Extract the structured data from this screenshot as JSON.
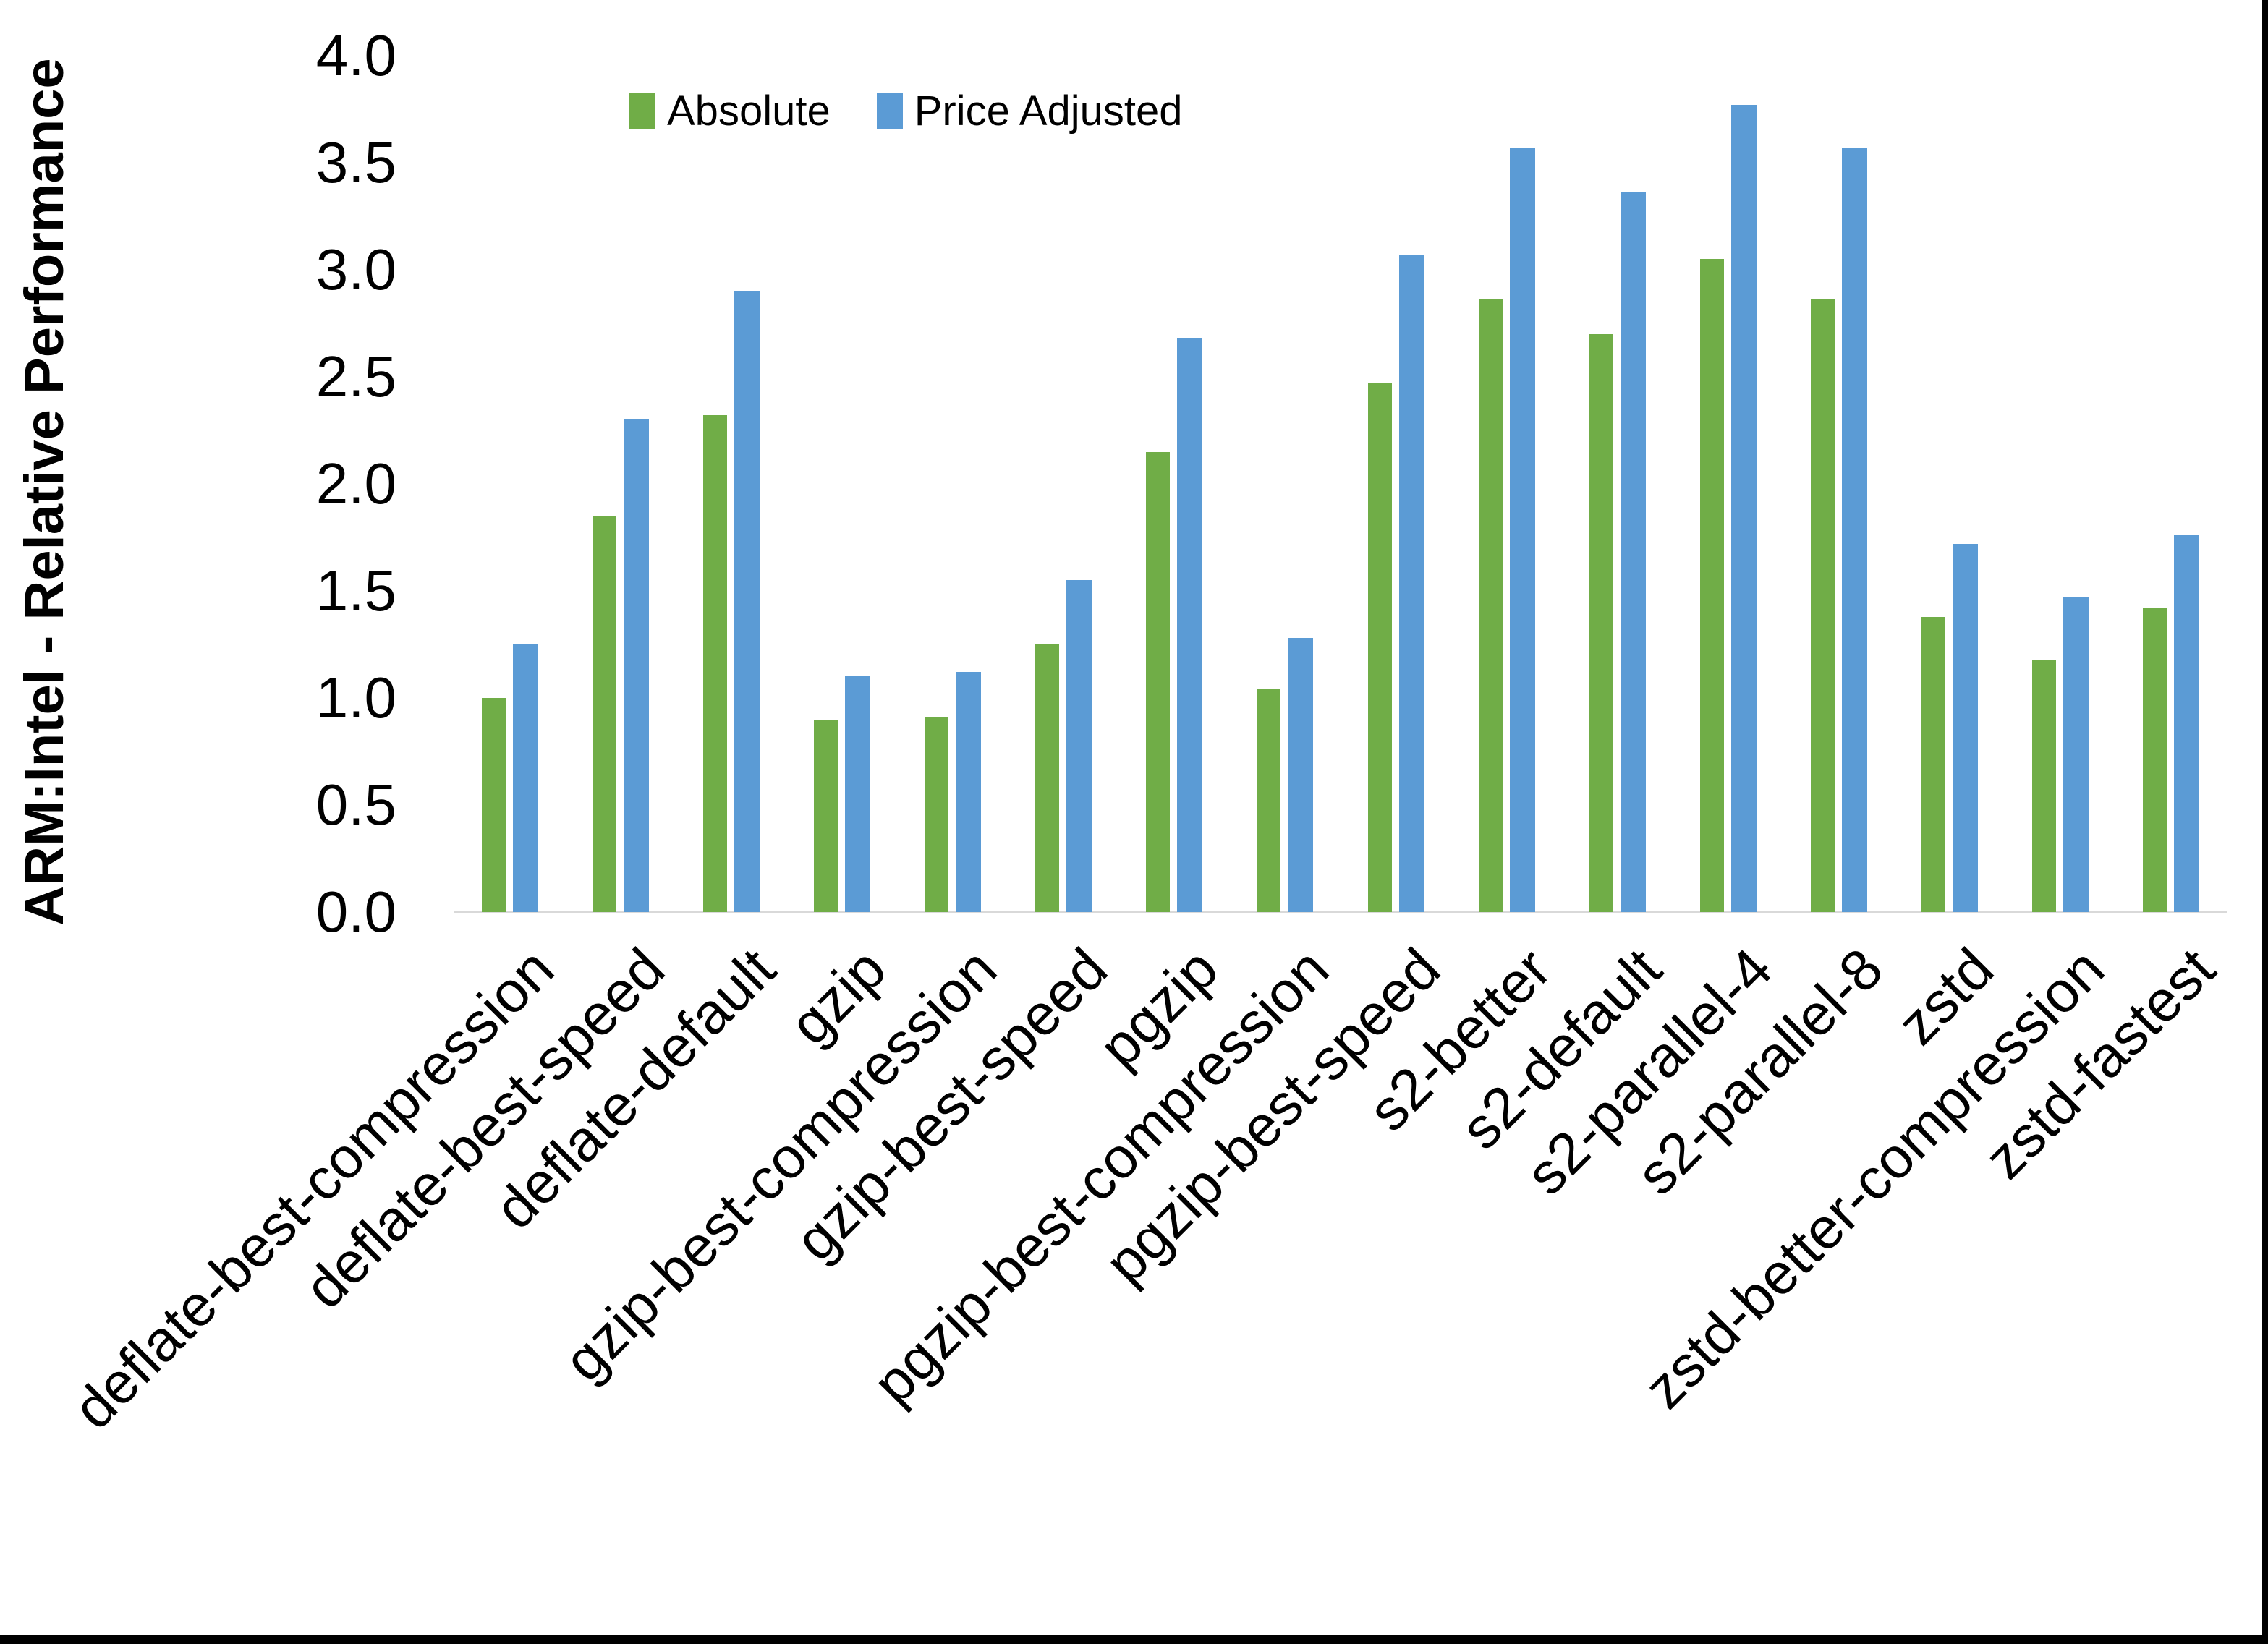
{
  "page": {
    "background_color": "#FFFFFF",
    "frame_border_color": "#000000",
    "axis_line_color": "#D9D9D9",
    "text_color": "#000000"
  },
  "legend": {
    "absolute_label": "Absolute",
    "price_adjusted_label": "Price Adjusted"
  },
  "chart_data": {
    "type": "bar",
    "title": "",
    "xlabel": "",
    "ylabel": "ARM:Intel - Relative Performance",
    "ylim": [
      0,
      4.0
    ],
    "ytick_step": 0.5,
    "ytick_labels": [
      "0.0",
      "0.5",
      "1.0",
      "1.5",
      "2.0",
      "2.5",
      "3.0",
      "3.5",
      "4.0"
    ],
    "grid": false,
    "legend_position": "top-center",
    "categories": [
      "deflate-best-compression",
      "deflate-best-speed",
      "deflate-default",
      "gzip",
      "gzip-best-compression",
      "gzip-best-speed",
      "pgzip",
      "pgzip-best-compression",
      "pgzip-best-speed",
      "s2-better",
      "s2-default",
      "s2-parallel-4",
      "s2-parallel-8",
      "zstd",
      "zstd-better-compression",
      "zstd-fastest"
    ],
    "series": [
      {
        "name": "Absolute",
        "color": "#70AD47",
        "values": [
          1.0,
          1.85,
          2.32,
          0.9,
          0.91,
          1.25,
          2.15,
          1.04,
          2.47,
          2.86,
          2.7,
          3.05,
          2.86,
          1.38,
          1.18,
          1.42
        ]
      },
      {
        "name": "Price Adjusted",
        "color": "#5B9BD5",
        "values": [
          1.25,
          2.3,
          2.9,
          1.1,
          1.12,
          1.55,
          2.68,
          1.28,
          3.07,
          3.57,
          3.36,
          3.77,
          3.57,
          1.72,
          1.47,
          1.76
        ]
      }
    ]
  }
}
